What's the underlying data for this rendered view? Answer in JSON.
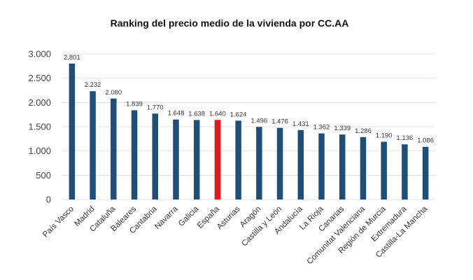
{
  "chart_data": {
    "type": "bar",
    "title": "Ranking del precio medio de la vivienda por CC.AA",
    "xlabel": "",
    "ylabel": "",
    "ylim": [
      0,
      3000
    ],
    "y_ticks": [
      0,
      500,
      1000,
      1500,
      2000,
      2500,
      3000
    ],
    "y_tick_labels": [
      "0",
      "500",
      "1.000",
      "1.500",
      "2.000",
      "2.500",
      "3.000"
    ],
    "grid": true,
    "legend": "none",
    "colors": {
      "default": "#1f4e79",
      "highlight": "#e3191c"
    },
    "highlight_category": "España",
    "categories": [
      "País Vasco",
      "Madrid",
      "Cataluña",
      "Baleares",
      "Cantabria",
      "Navarra",
      "Galicia",
      "España",
      "Asturias",
      "Aragón",
      "Castilla y León",
      "Andalucía",
      "La Rioja",
      "Canarias",
      "Comunitat Valenciana",
      "Región de Murcia",
      "Extremadura",
      "Castilla-La Mancha"
    ],
    "values": [
      2801,
      2232,
      2080,
      1839,
      1770,
      1648,
      1638,
      1640,
      1624,
      1496,
      1476,
      1431,
      1362,
      1339,
      1286,
      1190,
      1136,
      1086
    ],
    "value_labels": [
      "2.801",
      "2.232",
      "2.080",
      "1.839",
      "1.770",
      "1.648",
      "1.638",
      "1.640",
      "1.624",
      "1.496",
      "1.476",
      "1.431",
      "1.362",
      "1.339",
      "1.286",
      "1.190",
      "1.136",
      "1.086"
    ]
  }
}
